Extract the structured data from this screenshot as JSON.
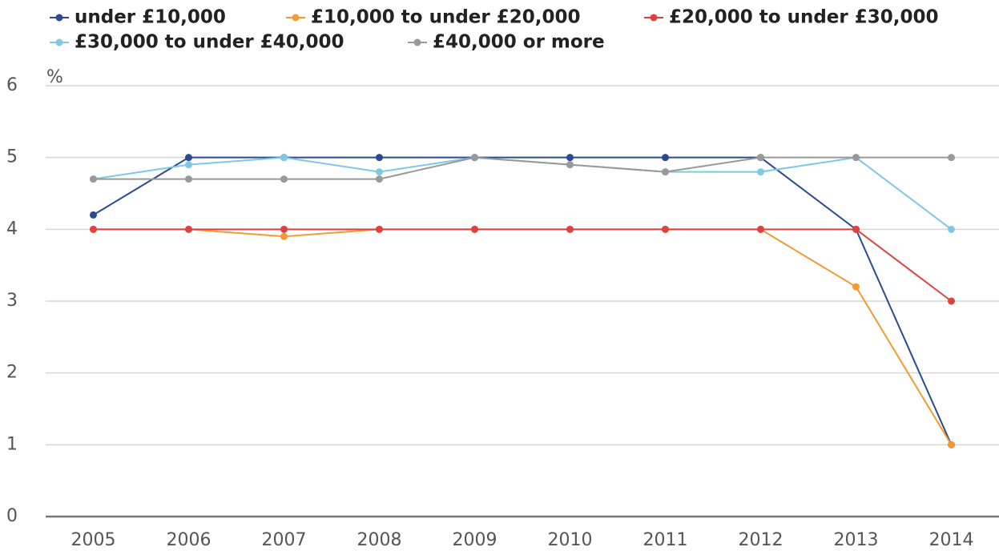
{
  "chart_data": {
    "type": "line",
    "y_label": "%",
    "categories": [
      "2005",
      "2006",
      "2007",
      "2008",
      "2009",
      "2010",
      "2011",
      "2012",
      "2013",
      "2014"
    ],
    "series": [
      {
        "name": "under £10,000",
        "color": "#2b4a90",
        "values": [
          4.2,
          5,
          5,
          5,
          5,
          5,
          5,
          5,
          4,
          1
        ]
      },
      {
        "name": "£10,000 to under £20,000",
        "color": "#f39a32",
        "values": [
          4,
          4,
          3.9,
          4,
          4,
          4,
          4,
          4,
          3.2,
          1
        ]
      },
      {
        "name": "£20,000 to under £30,000",
        "color": "#e04040",
        "values": [
          4,
          4,
          4,
          4,
          4,
          4,
          4,
          4,
          4,
          3
        ]
      },
      {
        "name": "£30,000 to under £40,000",
        "color": "#7ec8e3",
        "values": [
          4.7,
          4.9,
          5,
          4.8,
          5,
          4.9,
          4.8,
          4.8,
          5,
          4
        ]
      },
      {
        "name": "£40,000 or more",
        "color": "#999999",
        "values": [
          4.7,
          4.7,
          4.7,
          4.7,
          5,
          4.9,
          4.8,
          5,
          5,
          5
        ]
      }
    ],
    "ylim": [
      0,
      6
    ],
    "yticks": [
      0,
      1,
      2,
      3,
      4,
      5,
      6
    ],
    "grid": true
  }
}
